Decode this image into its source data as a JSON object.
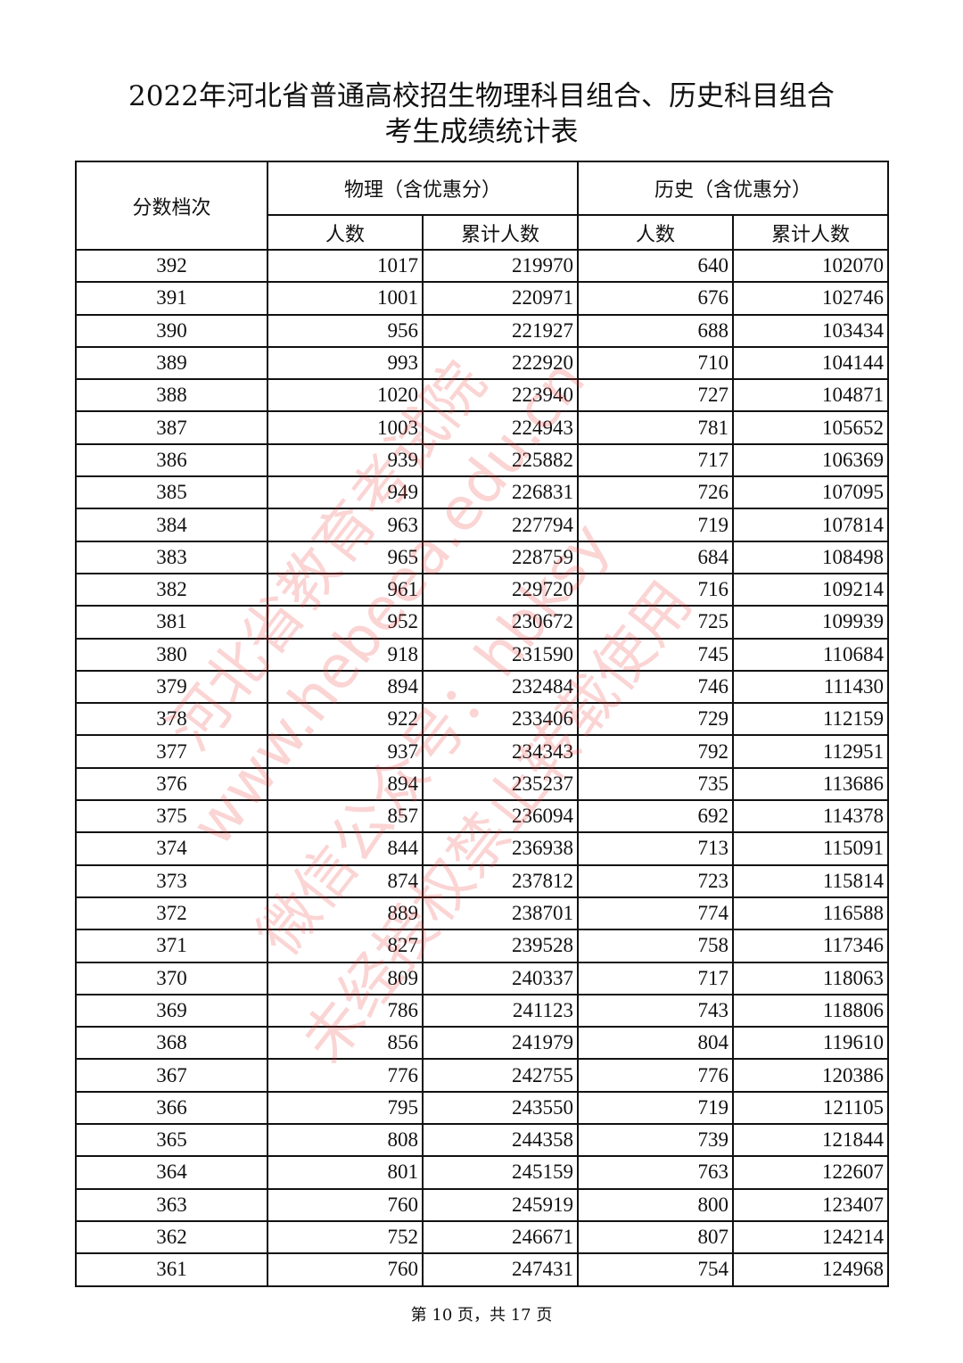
{
  "document": {
    "title_line1": "2022年河北省普通高校招生物理科目组合、历史科目组合",
    "title_line2": "考生成绩统计表",
    "footer": "第 10 页，共 17 页"
  },
  "table": {
    "header_score": "分数档次",
    "group_physics": "物理（含优惠分）",
    "group_history": "历史（含优惠分）",
    "col_count": "人数",
    "col_cumulative": "累计人数",
    "rows": [
      [
        "392",
        "1017",
        "219970",
        "640",
        "102070"
      ],
      [
        "391",
        "1001",
        "220971",
        "676",
        "102746"
      ],
      [
        "390",
        "956",
        "221927",
        "688",
        "103434"
      ],
      [
        "389",
        "993",
        "222920",
        "710",
        "104144"
      ],
      [
        "388",
        "1020",
        "223940",
        "727",
        "104871"
      ],
      [
        "387",
        "1003",
        "224943",
        "781",
        "105652"
      ],
      [
        "386",
        "939",
        "225882",
        "717",
        "106369"
      ],
      [
        "385",
        "949",
        "226831",
        "726",
        "107095"
      ],
      [
        "384",
        "963",
        "227794",
        "719",
        "107814"
      ],
      [
        "383",
        "965",
        "228759",
        "684",
        "108498"
      ],
      [
        "382",
        "961",
        "229720",
        "716",
        "109214"
      ],
      [
        "381",
        "952",
        "230672",
        "725",
        "109939"
      ],
      [
        "380",
        "918",
        "231590",
        "745",
        "110684"
      ],
      [
        "379",
        "894",
        "232484",
        "746",
        "111430"
      ],
      [
        "378",
        "922",
        "233406",
        "729",
        "112159"
      ],
      [
        "377",
        "937",
        "234343",
        "792",
        "112951"
      ],
      [
        "376",
        "894",
        "235237",
        "735",
        "113686"
      ],
      [
        "375",
        "857",
        "236094",
        "692",
        "114378"
      ],
      [
        "374",
        "844",
        "236938",
        "713",
        "115091"
      ],
      [
        "373",
        "874",
        "237812",
        "723",
        "115814"
      ],
      [
        "372",
        "889",
        "238701",
        "774",
        "116588"
      ],
      [
        "371",
        "827",
        "239528",
        "758",
        "117346"
      ],
      [
        "370",
        "809",
        "240337",
        "717",
        "118063"
      ],
      [
        "369",
        "786",
        "241123",
        "743",
        "118806"
      ],
      [
        "368",
        "856",
        "241979",
        "804",
        "119610"
      ],
      [
        "367",
        "776",
        "242755",
        "776",
        "120386"
      ],
      [
        "366",
        "795",
        "243550",
        "719",
        "121105"
      ],
      [
        "365",
        "808",
        "244358",
        "739",
        "121844"
      ],
      [
        "364",
        "801",
        "245159",
        "763",
        "122607"
      ],
      [
        "363",
        "760",
        "245919",
        "800",
        "123407"
      ],
      [
        "362",
        "752",
        "246671",
        "807",
        "124214"
      ],
      [
        "361",
        "760",
        "247431",
        "754",
        "124968"
      ]
    ]
  },
  "watermark": {
    "line1": "河北省教育考试院",
    "line2": "www.hebeea.edu.cn",
    "line3": "微信公众号：hbksy",
    "line4": "未经授权禁止转载使用",
    "color": "#eb3c3c"
  }
}
